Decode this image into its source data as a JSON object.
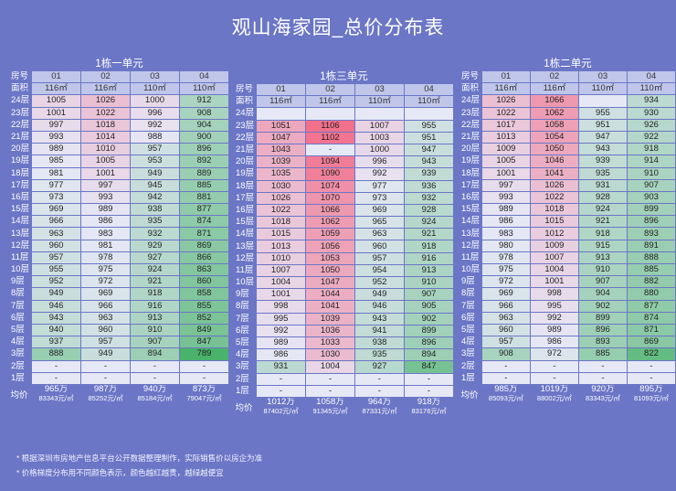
{
  "title": "观山海家园_总价分布表",
  "labels": {
    "room": "房号",
    "area": "面积",
    "avg": "均价"
  },
  "buildings": [
    {
      "name": "1栋一单元",
      "units": [
        "01",
        "02",
        "03",
        "04"
      ],
      "areas": [
        "116㎡",
        "116㎡",
        "110㎡",
        "110㎡"
      ],
      "rows": [
        {
          "floor": "24层",
          "prices": [
            "1005",
            "1026",
            "1000",
            "912"
          ]
        },
        {
          "floor": "23层",
          "prices": [
            "1001",
            "1022",
            "996",
            "908"
          ]
        },
        {
          "floor": "22层",
          "prices": [
            "997",
            "1018",
            "992",
            "904"
          ]
        },
        {
          "floor": "21层",
          "prices": [
            "993",
            "1014",
            "988",
            "900"
          ]
        },
        {
          "floor": "20层",
          "prices": [
            "989",
            "1010",
            "957",
            "896"
          ]
        },
        {
          "floor": "19层",
          "prices": [
            "985",
            "1005",
            "953",
            "892"
          ]
        },
        {
          "floor": "18层",
          "prices": [
            "981",
            "1001",
            "949",
            "889"
          ]
        },
        {
          "floor": "17层",
          "prices": [
            "977",
            "997",
            "945",
            "885"
          ]
        },
        {
          "floor": "16层",
          "prices": [
            "973",
            "993",
            "942",
            "881"
          ]
        },
        {
          "floor": "15层",
          "prices": [
            "969",
            "989",
            "938",
            "877"
          ]
        },
        {
          "floor": "14层",
          "prices": [
            "966",
            "986",
            "935",
            "874"
          ]
        },
        {
          "floor": "13层",
          "prices": [
            "963",
            "983",
            "932",
            "871"
          ]
        },
        {
          "floor": "12层",
          "prices": [
            "960",
            "981",
            "929",
            "869"
          ]
        },
        {
          "floor": "11层",
          "prices": [
            "957",
            "978",
            "927",
            "866"
          ]
        },
        {
          "floor": "10层",
          "prices": [
            "955",
            "975",
            "924",
            "863"
          ]
        },
        {
          "floor": "9层",
          "prices": [
            "952",
            "972",
            "921",
            "860"
          ]
        },
        {
          "floor": "8层",
          "prices": [
            "949",
            "969",
            "918",
            "858"
          ]
        },
        {
          "floor": "7层",
          "prices": [
            "946",
            "966",
            "916",
            "855"
          ]
        },
        {
          "floor": "6层",
          "prices": [
            "943",
            "963",
            "913",
            "852"
          ]
        },
        {
          "floor": "5层",
          "prices": [
            "940",
            "960",
            "910",
            "849"
          ]
        },
        {
          "floor": "4层",
          "prices": [
            "937",
            "957",
            "907",
            "847"
          ]
        },
        {
          "floor": "3层",
          "prices": [
            "888",
            "949",
            "894",
            "789"
          ]
        },
        {
          "floor": "2层",
          "prices": [
            "-",
            "-",
            "-",
            "-"
          ]
        },
        {
          "floor": "1层",
          "prices": [
            "-",
            "-",
            "-",
            "-"
          ]
        }
      ],
      "avg_totals": [
        "965万",
        "987万",
        "940万",
        "873万"
      ],
      "avg_unit": [
        "83343元/㎡",
        "85252元/㎡",
        "85184元/㎡",
        "79047元/㎡"
      ]
    },
    {
      "name": "1栋三单元",
      "units": [
        "01",
        "02",
        "03",
        "04"
      ],
      "areas": [
        "116㎡",
        "116㎡",
        "110㎡",
        "110㎡"
      ],
      "rows": [
        {
          "floor": "24层",
          "prices": [
            "",
            "",
            "",
            ""
          ]
        },
        {
          "floor": "23层",
          "prices": [
            "1051",
            "1106",
            "1007",
            "955"
          ]
        },
        {
          "floor": "22层",
          "prices": [
            "1047",
            "1102",
            "1003",
            "951"
          ]
        },
        {
          "floor": "21层",
          "prices": [
            "1043",
            "-",
            "1000",
            "947"
          ]
        },
        {
          "floor": "20层",
          "prices": [
            "1039",
            "1094",
            "996",
            "943"
          ]
        },
        {
          "floor": "19层",
          "prices": [
            "1035",
            "1090",
            "992",
            "939"
          ]
        },
        {
          "floor": "18层",
          "prices": [
            "1030",
            "1074",
            "977",
            "936"
          ]
        },
        {
          "floor": "17层",
          "prices": [
            "1026",
            "1070",
            "973",
            "932"
          ]
        },
        {
          "floor": "16层",
          "prices": [
            "1022",
            "1066",
            "969",
            "928"
          ]
        },
        {
          "floor": "15层",
          "prices": [
            "1018",
            "1062",
            "965",
            "924"
          ]
        },
        {
          "floor": "14层",
          "prices": [
            "1015",
            "1059",
            "963",
            "921"
          ]
        },
        {
          "floor": "13层",
          "prices": [
            "1013",
            "1056",
            "960",
            "918"
          ]
        },
        {
          "floor": "12层",
          "prices": [
            "1010",
            "1053",
            "957",
            "916"
          ]
        },
        {
          "floor": "11层",
          "prices": [
            "1007",
            "1050",
            "954",
            "913"
          ]
        },
        {
          "floor": "10层",
          "prices": [
            "1004",
            "1047",
            "952",
            "910"
          ]
        },
        {
          "floor": "9层",
          "prices": [
            "1001",
            "1044",
            "949",
            "907"
          ]
        },
        {
          "floor": "8层",
          "prices": [
            "998",
            "1041",
            "946",
            "905"
          ]
        },
        {
          "floor": "7层",
          "prices": [
            "995",
            "1039",
            "943",
            "902"
          ]
        },
        {
          "floor": "6层",
          "prices": [
            "992",
            "1036",
            "941",
            "899"
          ]
        },
        {
          "floor": "5层",
          "prices": [
            "989",
            "1033",
            "938",
            "896"
          ]
        },
        {
          "floor": "4层",
          "prices": [
            "986",
            "1030",
            "935",
            "894"
          ]
        },
        {
          "floor": "3层",
          "prices": [
            "931",
            "1004",
            "927",
            "847"
          ]
        },
        {
          "floor": "2层",
          "prices": [
            "-",
            "-",
            "-",
            "-"
          ]
        },
        {
          "floor": "1层",
          "prices": [
            "-",
            "-",
            "-",
            "-"
          ]
        }
      ],
      "avg_totals": [
        "1012万",
        "1058万",
        "964万",
        "918万"
      ],
      "avg_unit": [
        "87402元/㎡",
        "91345元/㎡",
        "87331元/㎡",
        "83176元/㎡"
      ]
    },
    {
      "name": "1栋二单元",
      "units": [
        "01",
        "02",
        "03",
        "04"
      ],
      "areas": [
        "116㎡",
        "116㎡",
        "110㎡",
        "110㎡"
      ],
      "rows": [
        {
          "floor": "24层",
          "prices": [
            "1026",
            "1066",
            "",
            "934"
          ]
        },
        {
          "floor": "23层",
          "prices": [
            "1022",
            "1062",
            "955",
            "930"
          ]
        },
        {
          "floor": "22层",
          "prices": [
            "1017",
            "1058",
            "951",
            "926"
          ]
        },
        {
          "floor": "21层",
          "prices": [
            "1013",
            "1054",
            "947",
            "922"
          ]
        },
        {
          "floor": "20层",
          "prices": [
            "1009",
            "1050",
            "943",
            "918"
          ]
        },
        {
          "floor": "19层",
          "prices": [
            "1005",
            "1046",
            "939",
            "914"
          ]
        },
        {
          "floor": "18层",
          "prices": [
            "1001",
            "1041",
            "935",
            "910"
          ]
        },
        {
          "floor": "17层",
          "prices": [
            "997",
            "1026",
            "931",
            "907"
          ]
        },
        {
          "floor": "16层",
          "prices": [
            "993",
            "1022",
            "928",
            "903"
          ]
        },
        {
          "floor": "15层",
          "prices": [
            "989",
            "1018",
            "924",
            "899"
          ]
        },
        {
          "floor": "14层",
          "prices": [
            "986",
            "1015",
            "921",
            "896"
          ]
        },
        {
          "floor": "13层",
          "prices": [
            "983",
            "1012",
            "918",
            "893"
          ]
        },
        {
          "floor": "12层",
          "prices": [
            "980",
            "1009",
            "915",
            "891"
          ]
        },
        {
          "floor": "11层",
          "prices": [
            "978",
            "1007",
            "913",
            "888"
          ]
        },
        {
          "floor": "10层",
          "prices": [
            "975",
            "1004",
            "910",
            "885"
          ]
        },
        {
          "floor": "9层",
          "prices": [
            "972",
            "1001",
            "907",
            "882"
          ]
        },
        {
          "floor": "8层",
          "prices": [
            "969",
            "998",
            "904",
            "880"
          ]
        },
        {
          "floor": "7层",
          "prices": [
            "966",
            "995",
            "902",
            "877"
          ]
        },
        {
          "floor": "6层",
          "prices": [
            "963",
            "992",
            "899",
            "874"
          ]
        },
        {
          "floor": "5层",
          "prices": [
            "960",
            "989",
            "896",
            "871"
          ]
        },
        {
          "floor": "4层",
          "prices": [
            "957",
            "986",
            "893",
            "869"
          ]
        },
        {
          "floor": "3层",
          "prices": [
            "908",
            "972",
            "885",
            "822"
          ]
        },
        {
          "floor": "2层",
          "prices": [
            "-",
            "-",
            "-",
            "-"
          ]
        },
        {
          "floor": "1层",
          "prices": [
            "-",
            "-",
            "-",
            "-"
          ]
        }
      ],
      "avg_totals": [
        "985万",
        "1019万",
        "920万",
        "895万"
      ],
      "avg_unit": [
        "85093元/㎡",
        "88002元/㎡",
        "83343元/㎡",
        "81093元/㎡"
      ]
    }
  ],
  "notes": [
    "* 根据深圳市房地产信息平台公开数据整理制作，实际销售价以房企为准",
    "* 价格梯度分布用不同颜色表示，颜色越红越贵，越绿越便宜"
  ],
  "colors": {
    "background": "#6b76c6",
    "expensive": "#f2708c",
    "cheap": "#49b36b",
    "neutral": "#e6e8f6"
  }
}
